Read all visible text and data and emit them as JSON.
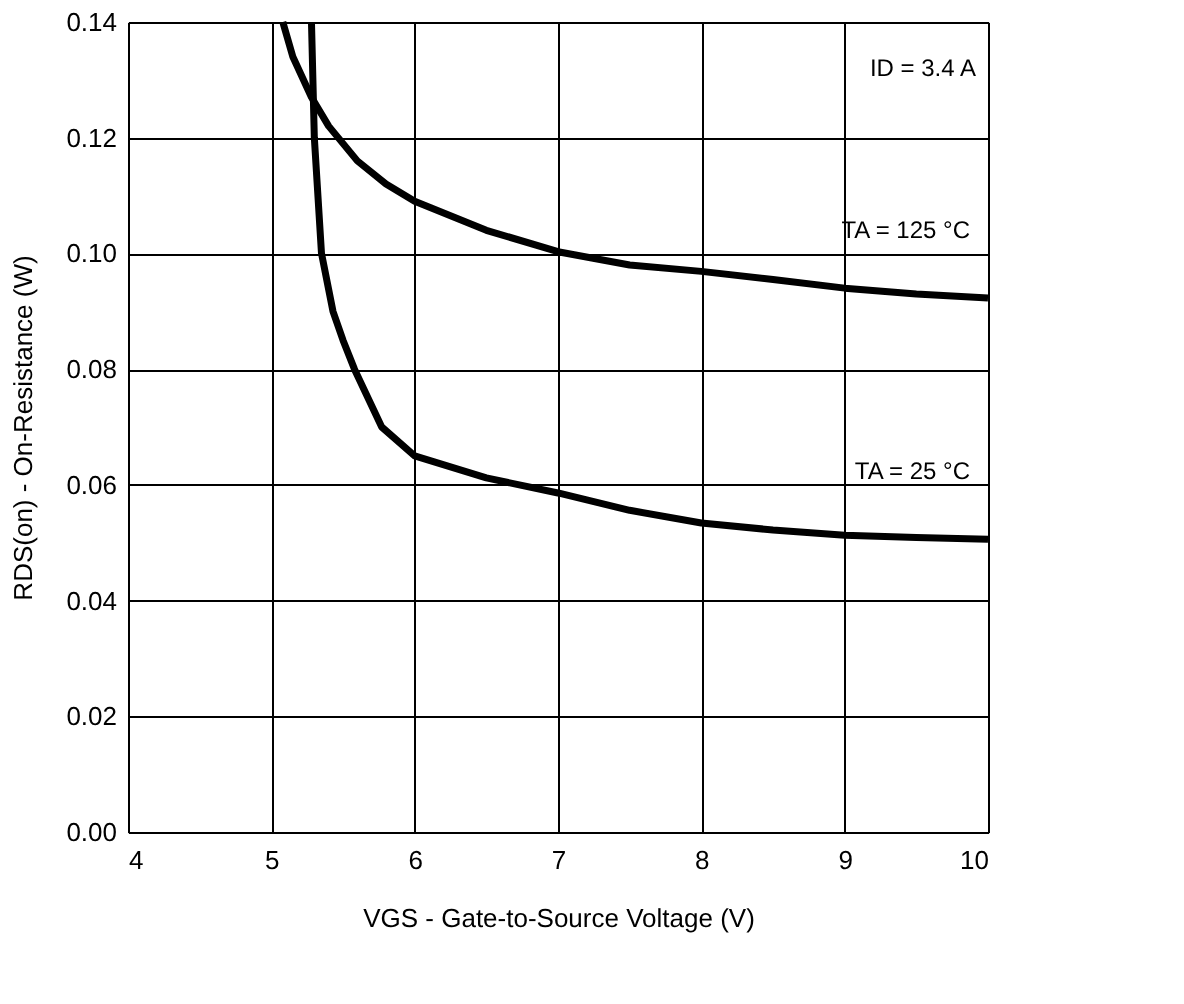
{
  "chart_data": {
    "type": "line",
    "xlabel": "VGS - Gate-to-Source Voltage (V)",
    "ylabel": "RDS(on) - On-Resistance (W)",
    "annotations": [
      "ID = 3.4 A"
    ],
    "series": [
      {
        "name": "TA = 125 °C",
        "color": "#000000",
        "x": [
          5.08,
          5.15,
          5.28,
          5.4,
          5.6,
          5.8,
          6,
          6.5,
          7,
          7.5,
          8,
          8.5,
          9,
          9.5,
          10
        ],
        "values": [
          0.14,
          0.134,
          0.127,
          0.122,
          0.116,
          0.112,
          0.109,
          0.104,
          0.1003,
          0.098,
          0.0969,
          0.0955,
          0.094,
          0.093,
          0.0923
        ]
      },
      {
        "name": "TA = 25 °C",
        "color": "#000000",
        "x": [
          5.28,
          5.3,
          5.35,
          5.43,
          5.5,
          5.58,
          5.77,
          6,
          6.5,
          7,
          7.5,
          8,
          8.5,
          9,
          9.5,
          10
        ],
        "values": [
          0.14,
          0.12,
          0.1,
          0.09,
          0.085,
          0.08,
          0.07,
          0.065,
          0.0612,
          0.0586,
          0.0556,
          0.0534,
          0.0522,
          0.0513,
          0.0509,
          0.0506
        ]
      }
    ],
    "xlim": [
      4,
      10
    ],
    "xticks": [
      4,
      5,
      6,
      7,
      8,
      9,
      10
    ],
    "ylim": [
      0,
      0.14
    ],
    "yticks": [
      {
        "value": 0,
        "label": "0.00"
      },
      {
        "value": 0.02,
        "label": "0.02"
      },
      {
        "value": 0.04,
        "label": "0.04"
      },
      {
        "value": 0.06,
        "label": "0.06"
      },
      {
        "value": 0.08,
        "label": "0.08"
      },
      {
        "value": 0.1,
        "label": "0.10"
      },
      {
        "value": 0.12,
        "label": "0.12"
      },
      {
        "value": 0.14,
        "label": "0.14"
      }
    ],
    "grid": true,
    "line_style": "solid",
    "marker": "none"
  }
}
